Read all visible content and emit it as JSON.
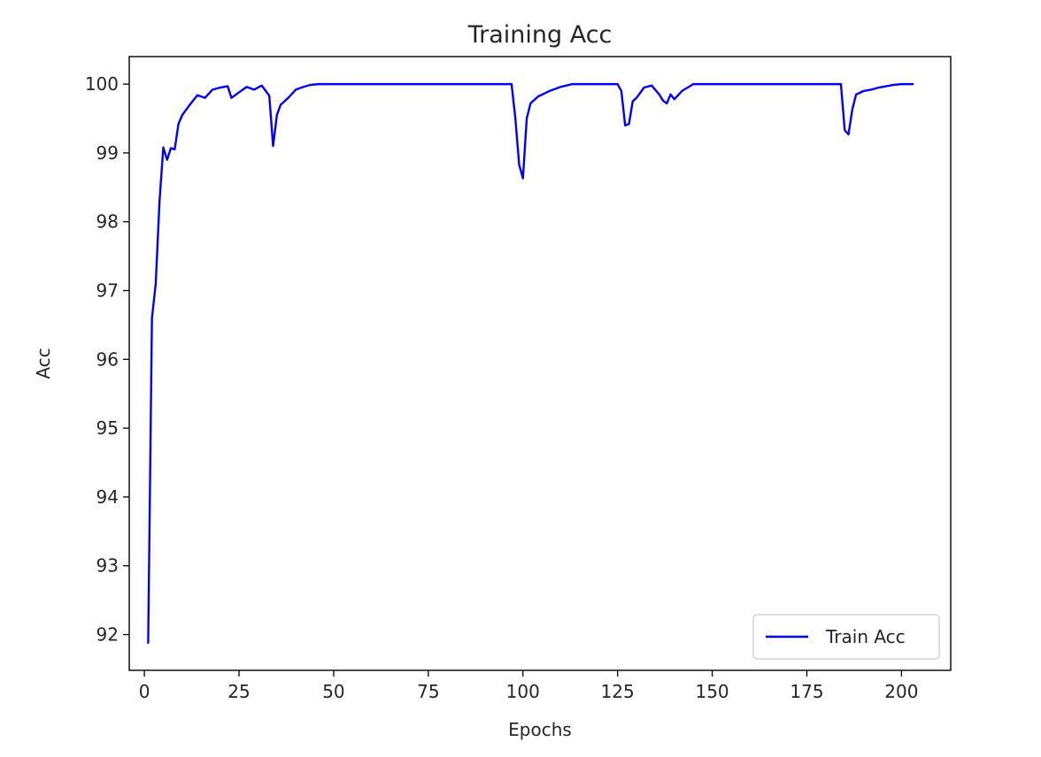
{
  "chart_data": {
    "type": "line",
    "title": "Training Acc",
    "xlabel": "Epochs",
    "ylabel": "Acc",
    "xlim": [
      -4,
      213
    ],
    "ylim": [
      91.48,
      100.4
    ],
    "xticks": [
      0,
      25,
      50,
      75,
      100,
      125,
      150,
      175,
      200
    ],
    "yticks": [
      92,
      93,
      94,
      95,
      96,
      97,
      98,
      99,
      100
    ],
    "grid": false,
    "legend_position": "lower-right",
    "series": [
      {
        "name": "Train Acc",
        "color": "#0000ff",
        "x": [
          1,
          2,
          3,
          4,
          5,
          6,
          7,
          8,
          9,
          10,
          12,
          14,
          16,
          18,
          20,
          22,
          23,
          25,
          27,
          29,
          31,
          33,
          34,
          35,
          36,
          38,
          40,
          42,
          44,
          46,
          50,
          60,
          70,
          80,
          90,
          97,
          98,
          99,
          100,
          101,
          102,
          104,
          107,
          110,
          113,
          115,
          120,
          125,
          126,
          127,
          128,
          129,
          130,
          132,
          134,
          136,
          137,
          138,
          139,
          140,
          142,
          145,
          150,
          160,
          170,
          180,
          184,
          185,
          186,
          187,
          188,
          190,
          192,
          194,
          196,
          198,
          200,
          203
        ],
        "values": [
          91.88,
          96.6,
          97.1,
          98.3,
          99.08,
          98.9,
          99.07,
          99.05,
          99.42,
          99.55,
          99.7,
          99.84,
          99.8,
          99.92,
          99.95,
          99.97,
          99.8,
          99.88,
          99.96,
          99.92,
          99.98,
          99.83,
          99.1,
          99.55,
          99.7,
          99.8,
          99.92,
          99.96,
          99.99,
          100.0,
          100.0,
          100.0,
          100.0,
          100.0,
          100.0,
          100.0,
          99.5,
          98.83,
          98.63,
          99.5,
          99.72,
          99.82,
          99.9,
          99.96,
          100.0,
          100.0,
          100.0,
          100.0,
          99.9,
          99.4,
          99.42,
          99.75,
          99.8,
          99.95,
          99.98,
          99.85,
          99.76,
          99.72,
          99.85,
          99.78,
          99.9,
          100.0,
          100.0,
          100.0,
          100.0,
          100.0,
          100.0,
          99.33,
          99.27,
          99.63,
          99.85,
          99.9,
          99.92,
          99.95,
          99.97,
          99.99,
          100.0,
          100.0
        ]
      }
    ]
  }
}
